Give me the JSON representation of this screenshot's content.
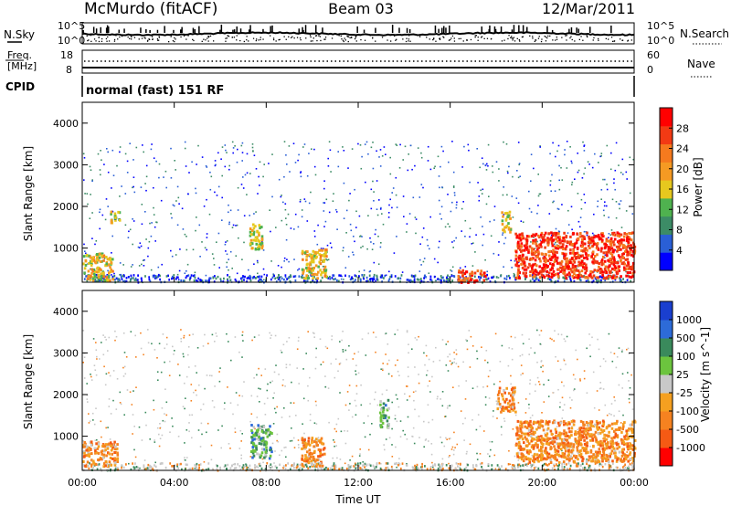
{
  "header": {
    "station": "McMurdo (fitACF)",
    "beam": "Beam 03",
    "date": "12/Mar/2011"
  },
  "noise_panel": {
    "left_label": "N.Sky",
    "right_label": "N.Search",
    "tick_top": "10^5",
    "tick_bottom": "10^0"
  },
  "freq_panel": {
    "left_label_line1": "Freq.",
    "left_label_line2": "[MHz]",
    "left_ticks": [
      "18",
      "8"
    ],
    "right_label": "Nave",
    "right_ticks": [
      "60",
      "0"
    ]
  },
  "cpid": {
    "label": "CPID",
    "value": "normal (fast) 151 RF"
  },
  "colors": {
    "power_scale": [
      "#0000ff",
      "#2a5fd6",
      "#3c8c66",
      "#4fb24f",
      "#e6c81e",
      "#f59a23",
      "#f57a1e",
      "#f23a14",
      "#ff0000"
    ],
    "velocity_scale": [
      "#1a3fcf",
      "#2d6bd8",
      "#3a8a5c",
      "#6cc43e",
      "#c8c8c8",
      "#f5a020",
      "#f58220",
      "#f55a14",
      "#ff0000"
    ]
  },
  "chart_data": [
    {
      "type": "heatmap",
      "panel": "power",
      "ylabel": "Slant Range [km]",
      "ylim": [
        180,
        4500
      ],
      "yticks": [
        1000,
        2000,
        3000,
        4000
      ],
      "xlim_hours": [
        0,
        24
      ],
      "colorbar": {
        "label": "Power [dB]",
        "range": [
          0,
          30
        ],
        "ticks": [
          "4",
          "8",
          "12",
          "16",
          "20",
          "24",
          "28"
        ]
      },
      "echo_regions": [
        {
          "t0": 0.0,
          "t1": 1.3,
          "r0": 250,
          "r1": 900,
          "level": 0.55
        },
        {
          "t0": 1.2,
          "t1": 1.6,
          "r0": 1600,
          "r1": 1900,
          "level": 0.45
        },
        {
          "t0": 7.2,
          "t1": 7.8,
          "r0": 1000,
          "r1": 1600,
          "level": 0.5
        },
        {
          "t0": 9.5,
          "t1": 10.6,
          "r0": 300,
          "r1": 1000,
          "level": 0.55
        },
        {
          "t0": 16.3,
          "t1": 17.5,
          "r0": 200,
          "r1": 500,
          "level": 0.85
        },
        {
          "t0": 18.2,
          "t1": 18.6,
          "r0": 1400,
          "r1": 1900,
          "level": 0.5
        },
        {
          "t0": 18.8,
          "t1": 24.0,
          "r0": 300,
          "r1": 1400,
          "level": 0.9
        }
      ]
    },
    {
      "type": "heatmap",
      "panel": "velocity",
      "ylabel": "Slant Range [km]",
      "ylim": [
        180,
        4500
      ],
      "yticks": [
        1000,
        2000,
        3000,
        4000
      ],
      "xlim_hours": [
        0,
        24
      ],
      "xlabel": "Time UT",
      "xticks": [
        "00:00",
        "04:00",
        "08:00",
        "12:00",
        "16:00",
        "20:00",
        "00:00"
      ],
      "colorbar": {
        "label": "Velocity [m s^-1]",
        "ticks": [
          "1000",
          "500",
          "100",
          "25",
          "-25",
          "-100",
          "-500",
          "-1000"
        ]
      },
      "echo_regions": [
        {
          "t0": 0.0,
          "t1": 1.5,
          "r0": 300,
          "r1": 900,
          "level": 0.7
        },
        {
          "t0": 7.3,
          "t1": 8.2,
          "r0": 500,
          "r1": 1300,
          "level": 0.3
        },
        {
          "t0": 9.5,
          "t1": 10.5,
          "r0": 300,
          "r1": 1000,
          "level": 0.7
        },
        {
          "t0": 12.9,
          "t1": 13.3,
          "r0": 1200,
          "r1": 1900,
          "level": 0.35
        },
        {
          "t0": 18.0,
          "t1": 18.8,
          "r0": 1600,
          "r1": 2200,
          "level": 0.72
        },
        {
          "t0": 18.8,
          "t1": 24.0,
          "r0": 400,
          "r1": 1400,
          "level": 0.72
        }
      ]
    }
  ]
}
